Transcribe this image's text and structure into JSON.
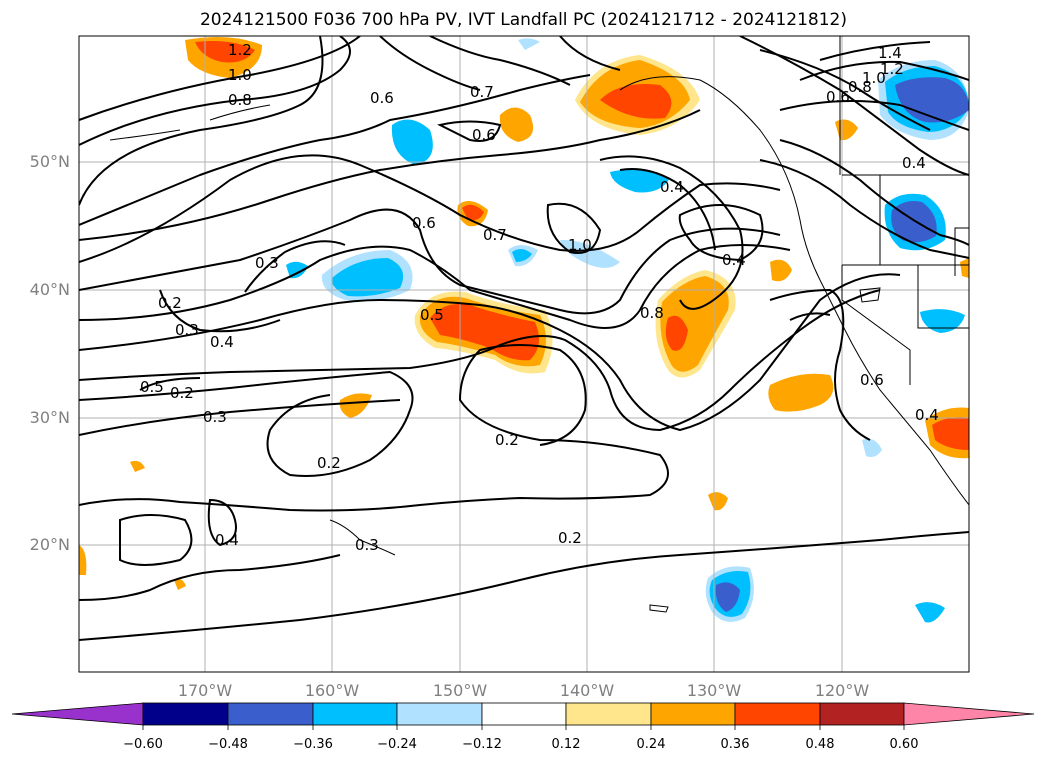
{
  "title": "2024121500 F036 700 hPa PV, IVT Landfall PC (2024121712 - 2024121812)",
  "map": {
    "lat_labels": [
      "50°N",
      "40°N",
      "30°N",
      "20°N"
    ],
    "lon_labels": [
      "170°W",
      "160°W",
      "150°W",
      "140°W",
      "130°W",
      "120°W"
    ],
    "gridline_color": "#b0b0b0",
    "contour_color": "#000000",
    "contour_labels": [
      "1.2",
      "1.0",
      "0.8",
      "0.6",
      "0.7",
      "0.6",
      "1.4",
      "1.2",
      "1.0",
      "0.8",
      "0.6",
      "0.4",
      "0.3",
      "0.2",
      "0.3",
      "0.4",
      "0.6",
      "0.7",
      "1.0",
      "0.5",
      "0.4",
      "0.5",
      "0.8",
      "0.4",
      "0.3",
      "0.2",
      "0.2",
      "0.4",
      "0.3",
      "0.2",
      "0.2",
      "0.6",
      "0.4"
    ]
  },
  "colorbar": {
    "ticks": [
      "−0.60",
      "−0.48",
      "−0.36",
      "−0.24",
      "−0.12",
      "0.12",
      "0.24",
      "0.36",
      "0.48",
      "0.60"
    ],
    "colors": [
      "#9932cc",
      "#00008b",
      "#3a5fcd",
      "#00bfff",
      "#b0e2ff",
      "#ffffff",
      "#ffe68c",
      "#ffa500",
      "#ff4500",
      "#b22222",
      "#ff85a8"
    ]
  }
}
